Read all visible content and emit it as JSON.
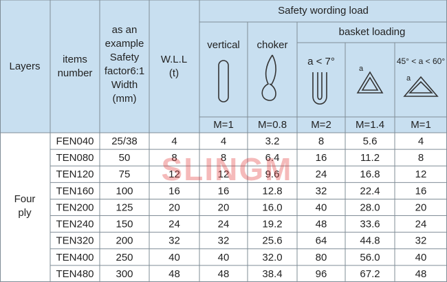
{
  "table": {
    "headers": {
      "layers": "Layers",
      "items_number": [
        "items",
        "number"
      ],
      "width": [
        "as an",
        "example",
        "Safety",
        "factor6:1",
        "Width",
        "(mm)"
      ],
      "wll": [
        "W.L.L",
        "(t)"
      ],
      "load": "Safety wording load",
      "vertical": "vertical",
      "choker": "choker",
      "basket": "basket loading",
      "angle1": "a < 7°",
      "angle2": "45° < a < 60°",
      "factors": [
        "M=1",
        "M=0.8",
        "M=2",
        "M=1.4",
        "M=1"
      ]
    },
    "layer_label": [
      "Four",
      "ply"
    ],
    "rows": [
      [
        "FEN040",
        "25/38",
        "4",
        "4",
        "3.2",
        "8",
        "5.6",
        "4"
      ],
      [
        "TEN080",
        "50",
        "8",
        "8",
        "6.4",
        "16",
        "11.2",
        "8"
      ],
      [
        "TEN120",
        "75",
        "12",
        "12",
        "9.6",
        "24",
        "16.8",
        "12"
      ],
      [
        "TEN160",
        "100",
        "16",
        "16",
        "12.8",
        "32",
        "22.4",
        "16"
      ],
      [
        "TEN200",
        "125",
        "20",
        "20",
        "16.0",
        "40",
        "28.0",
        "20"
      ],
      [
        "TEN240",
        "150",
        "24",
        "24",
        "19.2",
        "48",
        "33.6",
        "24"
      ],
      [
        "TEN320",
        "200",
        "32",
        "32",
        "25.6",
        "64",
        "44.8",
        "32"
      ],
      [
        "TEN400",
        "250",
        "40",
        "40",
        "32.0",
        "80",
        "56.0",
        "40"
      ],
      [
        "TEN480",
        "300",
        "48",
        "48",
        "38.4",
        "96",
        "67.2",
        "48"
      ]
    ],
    "watermark": "SLINGM"
  }
}
